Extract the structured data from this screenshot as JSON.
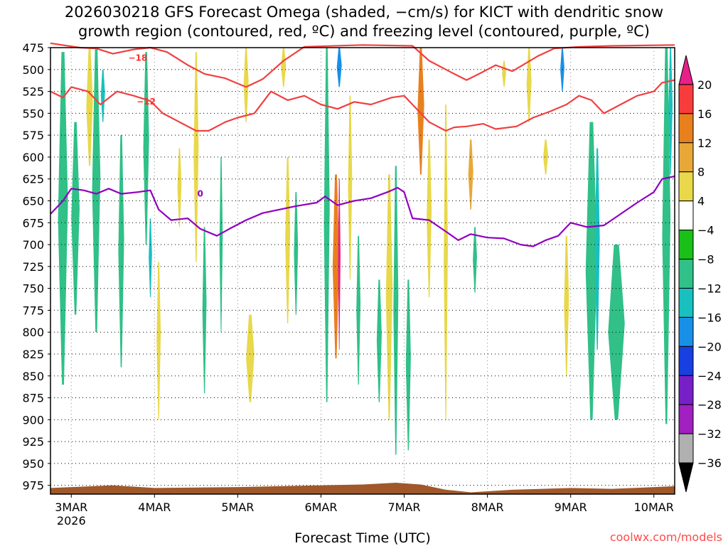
{
  "chart_data": {
    "type": "heatmap",
    "title_line1": "2026030218 GFS Forecast Omega (shaded, −cm/s) for KICT with dendritic snow",
    "title_line2": "growth region (contoured, red, ºC) and freezing level (contoured, purple, ºC)",
    "xlabel": "Forecast Time (UTC)",
    "credit": "coolwx.com/models",
    "x_ticks": [
      "3MAR",
      "4MAR",
      "5MAR",
      "6MAR",
      "7MAR",
      "8MAR",
      "9MAR",
      "10MAR"
    ],
    "x_tick_sub": "2026",
    "x_range_days": [
      2.75,
      10.25
    ],
    "y_ticks": [
      475,
      500,
      525,
      550,
      575,
      600,
      625,
      650,
      675,
      700,
      725,
      750,
      775,
      800,
      825,
      850,
      875,
      900,
      925,
      950,
      975
    ],
    "y_range_hpa": [
      475,
      985
    ],
    "colorbar": {
      "labels": [
        "20",
        "16",
        "12",
        "8",
        "4",
        "−4",
        "−8",
        "−12",
        "−16",
        "−20",
        "−24",
        "−28",
        "−32",
        "−36"
      ],
      "colors": [
        "#e8208a",
        "#f83c3c",
        "#e8801e",
        "#e8a838",
        "#e8d84a",
        "#ffffff",
        "#18c018",
        "#30c088",
        "#18c0c0",
        "#1890e8",
        "#1840e0",
        "#7820c8",
        "#a020c0",
        "#b0b0b0",
        "#000000"
      ]
    },
    "shaded_cells": [
      {
        "day": 2.9,
        "top": 480,
        "bot": 860,
        "w": 0.12,
        "omega": -8
      },
      {
        "day": 3.05,
        "top": 560,
        "bot": 780,
        "w": 0.1,
        "omega": -8
      },
      {
        "day": 3.22,
        "top": 475,
        "bot": 610,
        "w": 0.08,
        "omega": 6
      },
      {
        "day": 3.3,
        "top": 475,
        "bot": 800,
        "w": 0.1,
        "omega": -8
      },
      {
        "day": 3.38,
        "top": 500,
        "bot": 560,
        "w": 0.05,
        "omega": -12
      },
      {
        "day": 3.6,
        "top": 575,
        "bot": 840,
        "w": 0.07,
        "omega": -8
      },
      {
        "day": 3.9,
        "top": 480,
        "bot": 700,
        "w": 0.07,
        "omega": -8
      },
      {
        "day": 3.95,
        "top": 670,
        "bot": 760,
        "w": 0.04,
        "omega": -12
      },
      {
        "day": 4.05,
        "top": 720,
        "bot": 900,
        "w": 0.05,
        "omega": 6
      },
      {
        "day": 4.3,
        "top": 590,
        "bot": 680,
        "w": 0.05,
        "omega": 6
      },
      {
        "day": 4.5,
        "top": 480,
        "bot": 720,
        "w": 0.06,
        "omega": 6
      },
      {
        "day": 4.6,
        "top": 680,
        "bot": 870,
        "w": 0.05,
        "omega": -8
      },
      {
        "day": 4.8,
        "top": 600,
        "bot": 800,
        "w": 0.04,
        "omega": -8
      },
      {
        "day": 5.1,
        "top": 475,
        "bot": 560,
        "w": 0.06,
        "omega": 6
      },
      {
        "day": 5.15,
        "top": 780,
        "bot": 880,
        "w": 0.1,
        "omega": 6
      },
      {
        "day": 5.55,
        "top": 475,
        "bot": 520,
        "w": 0.06,
        "omega": 6
      },
      {
        "day": 5.6,
        "top": 600,
        "bot": 790,
        "w": 0.06,
        "omega": 6
      },
      {
        "day": 5.7,
        "top": 640,
        "bot": 780,
        "w": 0.05,
        "omega": -8
      },
      {
        "day": 6.07,
        "top": 475,
        "bot": 880,
        "w": 0.07,
        "omega": -8
      },
      {
        "day": 6.18,
        "top": 620,
        "bot": 830,
        "w": 0.08,
        "omega": 12
      },
      {
        "day": 6.22,
        "top": 625,
        "bot": 820,
        "w": 0.03,
        "omega": 20
      },
      {
        "day": 6.22,
        "top": 475,
        "bot": 520,
        "w": 0.06,
        "omega": -16
      },
      {
        "day": 6.35,
        "top": 530,
        "bot": 740,
        "w": 0.05,
        "omega": 6
      },
      {
        "day": 6.45,
        "top": 690,
        "bot": 860,
        "w": 0.05,
        "omega": -8
      },
      {
        "day": 6.7,
        "top": 740,
        "bot": 880,
        "w": 0.06,
        "omega": -8
      },
      {
        "day": 6.82,
        "top": 620,
        "bot": 900,
        "w": 0.08,
        "omega": 6
      },
      {
        "day": 6.9,
        "top": 610,
        "bot": 940,
        "w": 0.06,
        "omega": -8
      },
      {
        "day": 7.05,
        "top": 740,
        "bot": 935,
        "w": 0.06,
        "omega": -8
      },
      {
        "day": 7.2,
        "top": 475,
        "bot": 620,
        "w": 0.08,
        "omega": 14
      },
      {
        "day": 7.3,
        "top": 580,
        "bot": 760,
        "w": 0.06,
        "omega": 6
      },
      {
        "day": 7.5,
        "top": 540,
        "bot": 900,
        "w": 0.05,
        "omega": 6
      },
      {
        "day": 7.8,
        "top": 580,
        "bot": 660,
        "w": 0.06,
        "omega": 10
      },
      {
        "day": 7.85,
        "top": 680,
        "bot": 755,
        "w": 0.05,
        "omega": -8
      },
      {
        "day": 8.2,
        "top": 490,
        "bot": 520,
        "w": 0.05,
        "omega": 6
      },
      {
        "day": 8.5,
        "top": 475,
        "bot": 560,
        "w": 0.06,
        "omega": 6
      },
      {
        "day": 8.7,
        "top": 580,
        "bot": 620,
        "w": 0.06,
        "omega": 6
      },
      {
        "day": 8.9,
        "top": 475,
        "bot": 525,
        "w": 0.05,
        "omega": -16
      },
      {
        "day": 8.95,
        "top": 690,
        "bot": 850,
        "w": 0.06,
        "omega": 6
      },
      {
        "day": 9.25,
        "top": 560,
        "bot": 900,
        "w": 0.14,
        "omega": -8
      },
      {
        "day": 9.32,
        "top": 590,
        "bot": 820,
        "w": 0.06,
        "omega": -12
      },
      {
        "day": 9.55,
        "top": 700,
        "bot": 900,
        "w": 0.2,
        "omega": -8
      },
      {
        "day": 10.15,
        "top": 475,
        "bot": 905,
        "w": 0.1,
        "omega": -8
      },
      {
        "day": 10.2,
        "top": 475,
        "bot": 620,
        "w": 0.05,
        "omega": -12
      }
    ],
    "contours": [
      {
        "value": -18,
        "color": "#f04040",
        "label": "−18",
        "points": [
          [
            2.75,
            470
          ],
          [
            3.1,
            475
          ],
          [
            3.3,
            476
          ],
          [
            3.5,
            482
          ],
          [
            3.75,
            477
          ],
          [
            3.95,
            475
          ],
          [
            4.15,
            480
          ],
          [
            4.4,
            495
          ],
          [
            4.6,
            505
          ],
          [
            4.85,
            510
          ],
          [
            5.1,
            520
          ],
          [
            5.3,
            511
          ],
          [
            5.55,
            490
          ],
          [
            5.8,
            474
          ],
          [
            6.5,
            472
          ],
          [
            7.1,
            473
          ],
          [
            7.3,
            490
          ],
          [
            7.6,
            505
          ],
          [
            7.75,
            512
          ],
          [
            7.9,
            505
          ],
          [
            8.1,
            495
          ],
          [
            8.3,
            502
          ],
          [
            8.6,
            485
          ],
          [
            8.8,
            476
          ],
          [
            9.1,
            474
          ],
          [
            9.5,
            473
          ],
          [
            10.25,
            472
          ]
        ],
        "label_at": [
          3.8,
          490
        ]
      },
      {
        "value": -12,
        "color": "#f04040",
        "label": "−12",
        "points": [
          [
            2.75,
            525
          ],
          [
            2.9,
            532
          ],
          [
            3.0,
            520
          ],
          [
            3.2,
            525
          ],
          [
            3.35,
            540
          ],
          [
            3.55,
            525
          ],
          [
            3.75,
            530
          ],
          [
            3.95,
            536
          ],
          [
            4.1,
            550
          ],
          [
            4.3,
            560
          ],
          [
            4.5,
            570
          ],
          [
            4.65,
            570
          ],
          [
            4.85,
            560
          ],
          [
            5.0,
            555
          ],
          [
            5.2,
            550
          ],
          [
            5.4,
            525
          ],
          [
            5.6,
            535
          ],
          [
            5.8,
            530
          ],
          [
            6.0,
            540
          ],
          [
            6.2,
            545
          ],
          [
            6.4,
            537
          ],
          [
            6.6,
            540
          ],
          [
            6.85,
            532
          ],
          [
            7.0,
            530
          ],
          [
            7.15,
            545
          ],
          [
            7.3,
            560
          ],
          [
            7.5,
            570
          ],
          [
            7.6,
            566
          ],
          [
            7.75,
            565
          ],
          [
            7.95,
            562
          ],
          [
            8.1,
            568
          ],
          [
            8.35,
            565
          ],
          [
            8.55,
            555
          ],
          [
            8.75,
            548
          ],
          [
            8.95,
            540
          ],
          [
            9.1,
            530
          ],
          [
            9.25,
            535
          ],
          [
            9.4,
            550
          ],
          [
            9.6,
            540
          ],
          [
            9.8,
            530
          ],
          [
            10.0,
            525
          ],
          [
            10.1,
            515
          ],
          [
            10.25,
            512
          ]
        ],
        "label_at": [
          3.9,
          540
        ]
      },
      {
        "value": 0,
        "color": "#9000c0",
        "label": "0",
        "points": [
          [
            2.75,
            665
          ],
          [
            2.9,
            650
          ],
          [
            3.0,
            636
          ],
          [
            3.15,
            638
          ],
          [
            3.3,
            642
          ],
          [
            3.45,
            636
          ],
          [
            3.6,
            642
          ],
          [
            3.8,
            640
          ],
          [
            3.95,
            638
          ],
          [
            4.05,
            660
          ],
          [
            4.2,
            672
          ],
          [
            4.4,
            670
          ],
          [
            4.55,
            682
          ],
          [
            4.75,
            690
          ],
          [
            4.9,
            682
          ],
          [
            5.1,
            672
          ],
          [
            5.3,
            664
          ],
          [
            5.5,
            660
          ],
          [
            5.7,
            656
          ],
          [
            5.95,
            652
          ],
          [
            6.05,
            645
          ],
          [
            6.2,
            655
          ],
          [
            6.4,
            650
          ],
          [
            6.6,
            647
          ],
          [
            6.8,
            640
          ],
          [
            6.92,
            635
          ],
          [
            7.0,
            640
          ],
          [
            7.1,
            670
          ],
          [
            7.3,
            672
          ],
          [
            7.5,
            685
          ],
          [
            7.65,
            695
          ],
          [
            7.8,
            688
          ],
          [
            8.0,
            692
          ],
          [
            8.2,
            693
          ],
          [
            8.4,
            700
          ],
          [
            8.55,
            702
          ],
          [
            8.7,
            695
          ],
          [
            8.85,
            690
          ],
          [
            9.0,
            675
          ],
          [
            9.2,
            680
          ],
          [
            9.4,
            678
          ],
          [
            9.6,
            665
          ],
          [
            9.8,
            652
          ],
          [
            10.0,
            640
          ],
          [
            10.1,
            625
          ],
          [
            10.25,
            622
          ]
        ],
        "label_at": [
          4.55,
          645
        ]
      }
    ]
  }
}
